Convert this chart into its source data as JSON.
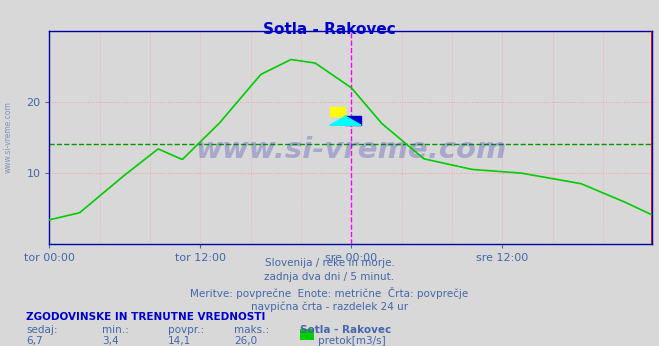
{
  "title": "Sotla - Rakovec",
  "title_color": "#0000cc",
  "bg_color": "#d8d8d8",
  "plot_bg_color": "#d8d8d8",
  "grid_color_h": "#ff9999",
  "grid_color_v": "#ffaaaa",
  "line_color": "#00cc00",
  "avg_line_color": "#009900",
  "avg_value": 14.1,
  "ylim": [
    0,
    30
  ],
  "yticks": [
    10,
    20
  ],
  "watermark_text": "www.si-vreme.com",
  "watermark_color": "#1a1aaa",
  "watermark_alpha": 0.25,
  "subtitle_lines": [
    "Slovenija / reke in morje.",
    "zadnja dva dni / 5 minut.",
    "Meritve: povprečne  Enote: metrične  Črta: povprečje",
    "navpična črta - razdelek 24 ur"
  ],
  "subtitle_color": "#4466aa",
  "footer_bold": "ZGODOVINSKE IN TRENUTNE VREDNOSTI",
  "footer_labels": [
    "sedaj:",
    "min.:",
    "povpr.:",
    "maks.:",
    "Sotla - Rakovec"
  ],
  "footer_values": [
    "6,7",
    "3,4",
    "14,1",
    "26,0"
  ],
  "footer_color": "#4466aa",
  "footer_bold_color": "#0000cc",
  "legend_label": "pretok[m3/s]",
  "legend_color": "#00cc00",
  "x_tick_labels": [
    "tor 00:00",
    "tor 12:00",
    "sre 00:00",
    "sre 12:00"
  ],
  "x_tick_positions": [
    0,
    144,
    288,
    432
  ],
  "total_points": 576,
  "vline_magenta": 288,
  "vline_red": 575,
  "axis_color": "#0000aa",
  "ylabel_text": "www.si-vreme.com"
}
